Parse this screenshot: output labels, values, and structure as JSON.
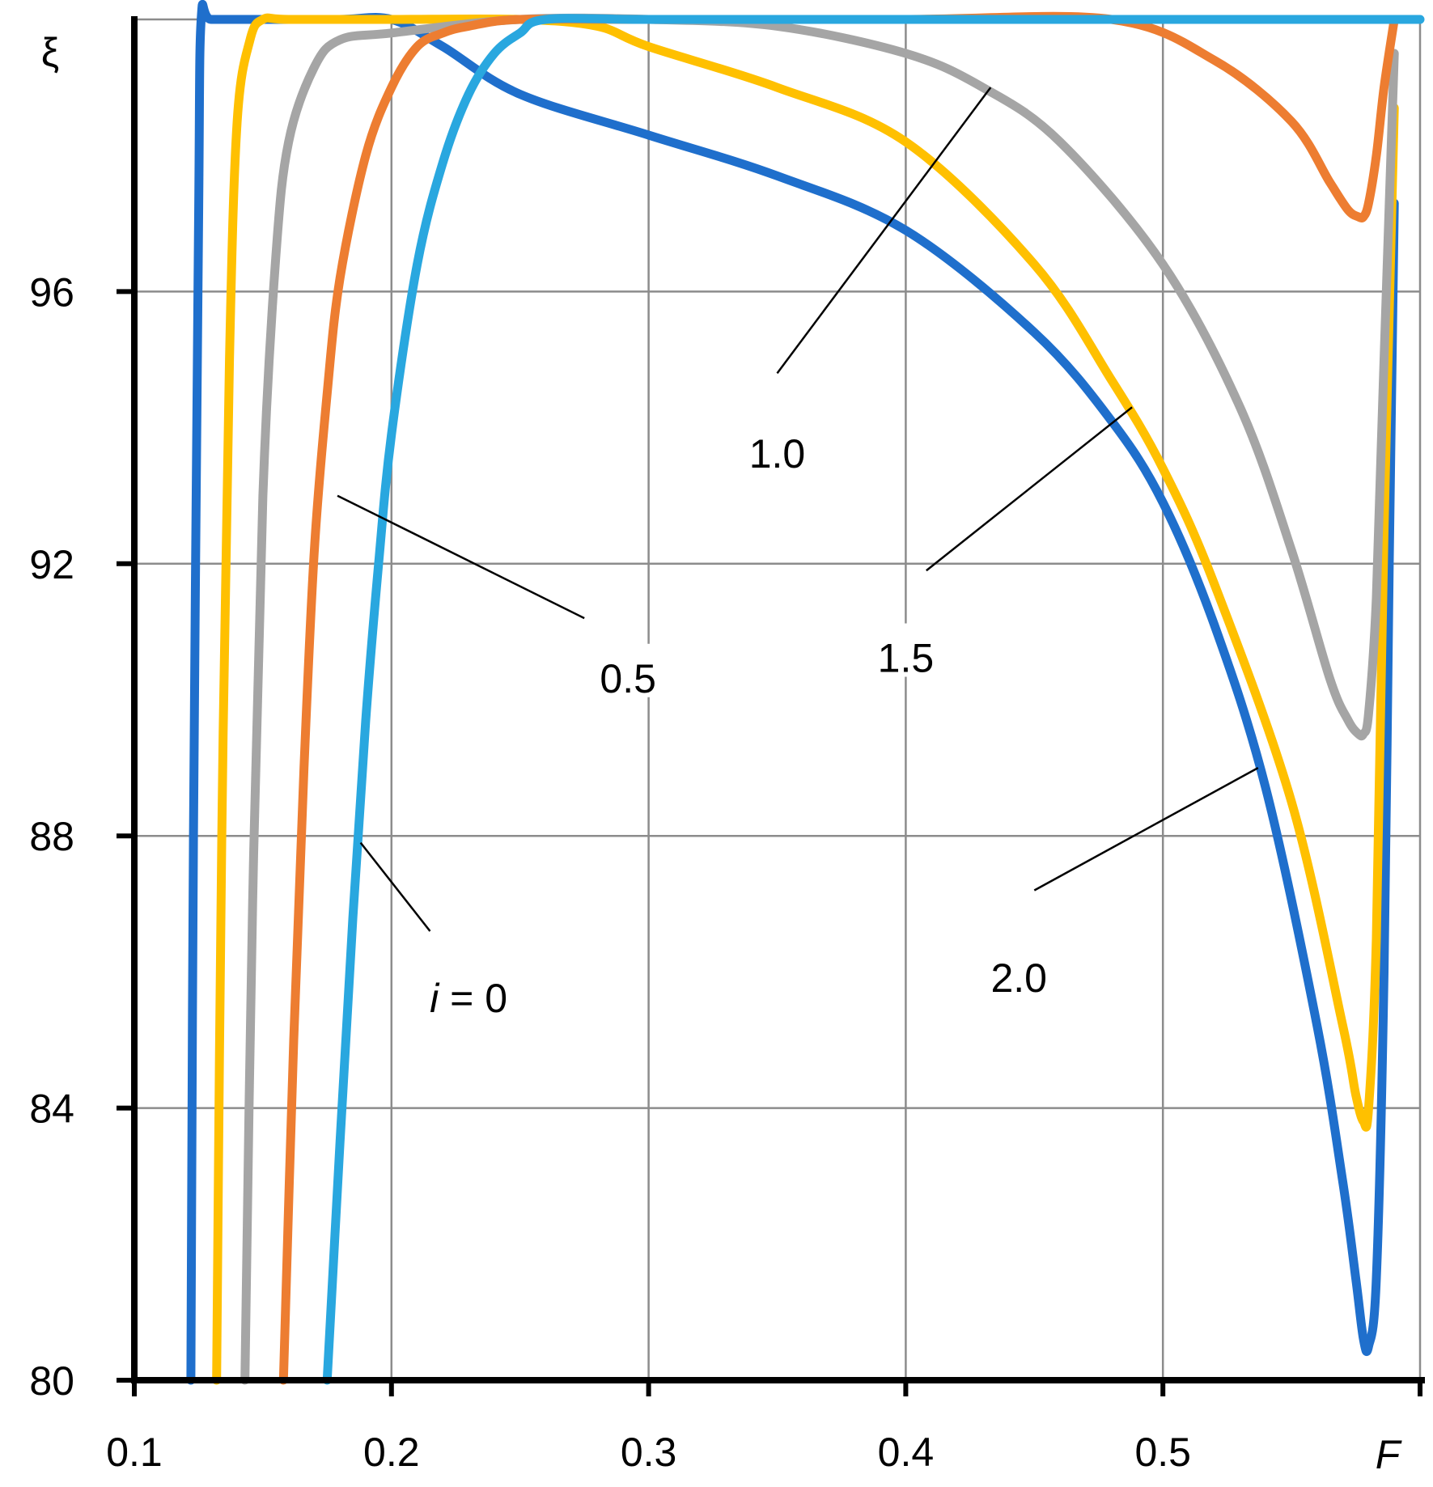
{
  "chart_data": {
    "type": "line",
    "xlabel": "F",
    "ylabel": "ξ",
    "xlim": [
      0.1,
      0.6
    ],
    "ylim": [
      80,
      100
    ],
    "x_ticks": [
      0.1,
      0.2,
      0.3,
      0.4,
      0.5
    ],
    "x_tick_labels": [
      "0.1",
      "0.2",
      "0.3",
      "0.4",
      "0.5"
    ],
    "y_ticks": [
      80,
      84,
      88,
      92,
      96
    ],
    "y_tick_labels": [
      "80",
      "84",
      "88",
      "92",
      "96"
    ],
    "grid": true,
    "legend": "none",
    "series": [
      {
        "color": "#1f6fcc",
        "x": [
          0.122,
          0.123,
          0.125,
          0.126,
          0.13,
          0.15,
          0.18,
          0.2,
          0.22,
          0.25,
          0.3,
          0.35,
          0.4,
          0.45,
          0.48,
          0.5,
          0.52,
          0.54,
          0.56,
          0.57,
          0.575,
          0.578,
          0.58,
          0.583,
          0.586,
          0.588,
          0.59
        ],
        "y": [
          80,
          88,
          97,
          100,
          100,
          100,
          100,
          100,
          99.6,
          98.9,
          98.3,
          97.7,
          96.9,
          95.4,
          94.1,
          92.9,
          91.1,
          88.7,
          85.2,
          82.9,
          81.5,
          80.6,
          80.5,
          81.5,
          86,
          92,
          97.3
        ]
      },
      {
        "color": "#ffc000",
        "x": [
          0.132,
          0.134,
          0.137,
          0.14,
          0.145,
          0.15,
          0.16,
          0.2,
          0.25,
          0.28,
          0.3,
          0.35,
          0.4,
          0.45,
          0.48,
          0.5,
          0.52,
          0.55,
          0.57,
          0.575,
          0.578,
          0.58,
          0.583,
          0.586,
          0.59
        ],
        "y": [
          80,
          88,
          95,
          98.5,
          99.7,
          100,
          100,
          100,
          100,
          99.9,
          99.6,
          99,
          98.2,
          96.4,
          94.7,
          93.4,
          91.7,
          88.5,
          85.2,
          84.2,
          83.8,
          84,
          86.5,
          92.5,
          98.7
        ]
      },
      {
        "color": "#a5a5a5",
        "x": [
          0.143,
          0.146,
          0.15,
          0.155,
          0.16,
          0.17,
          0.18,
          0.2,
          0.25,
          0.3,
          0.35,
          0.4,
          0.43,
          0.46,
          0.5,
          0.53,
          0.55,
          0.565,
          0.572,
          0.576,
          0.578,
          0.58,
          0.583,
          0.586,
          0.59
        ],
        "y": [
          80,
          87,
          93,
          96.5,
          98.2,
          99.3,
          99.7,
          99.8,
          100,
          100,
          99.9,
          99.5,
          99,
          98.2,
          96.4,
          94.3,
          92.2,
          90.3,
          89.7,
          89.5,
          89.5,
          89.8,
          91.5,
          95,
          99.5
        ]
      },
      {
        "color": "#ed7d31",
        "x": [
          0.158,
          0.162,
          0.166,
          0.17,
          0.175,
          0.18,
          0.19,
          0.2,
          0.21,
          0.22,
          0.23,
          0.25,
          0.3,
          0.4,
          0.48,
          0.52,
          0.55,
          0.565,
          0.572,
          0.576,
          0.578,
          0.58,
          0.583,
          0.586,
          0.59
        ],
        "y": [
          80,
          85,
          89,
          92.2,
          94.5,
          96.2,
          98,
          99,
          99.6,
          99.8,
          99.9,
          100,
          100,
          100,
          100,
          99.4,
          98.5,
          97.6,
          97.2,
          97.1,
          97.1,
          97.3,
          98,
          99,
          100
        ]
      },
      {
        "color": "#29a7df",
        "x": [
          0.175,
          0.18,
          0.185,
          0.19,
          0.195,
          0.2,
          0.21,
          0.22,
          0.23,
          0.24,
          0.25,
          0.26,
          0.3,
          0.4,
          0.5,
          0.6
        ],
        "y": [
          80,
          83.5,
          86.8,
          89.7,
          92,
          93.9,
          96.4,
          97.9,
          98.9,
          99.5,
          99.8,
          100,
          100,
          100,
          100,
          100
        ]
      }
    ],
    "annotations": [
      {
        "text": "i = 0",
        "var": "i",
        "rest": " = 0",
        "label_x": 0.23,
        "label_y": 85.6,
        "line_from": [
          0.215,
          86.6
        ],
        "line_to": [
          0.188,
          87.9
        ]
      },
      {
        "text": "0.5",
        "label_x": 0.292,
        "label_y": 90.3,
        "line_from": [
          0.275,
          91.2
        ],
        "line_to": [
          0.179,
          93.0
        ]
      },
      {
        "text": "1.0",
        "label_x": 0.35,
        "label_y": 93.6,
        "line_from": [
          0.35,
          94.8
        ],
        "line_to": [
          0.433,
          99.0
        ]
      },
      {
        "text": "1.5",
        "label_x": 0.4,
        "label_y": 90.6,
        "line_from": [
          0.408,
          91.9
        ],
        "line_to": [
          0.488,
          94.3
        ]
      },
      {
        "text": "2.0",
        "label_x": 0.444,
        "label_y": 85.9,
        "line_from": [
          0.45,
          87.2
        ],
        "line_to": [
          0.537,
          89.0
        ]
      }
    ]
  }
}
